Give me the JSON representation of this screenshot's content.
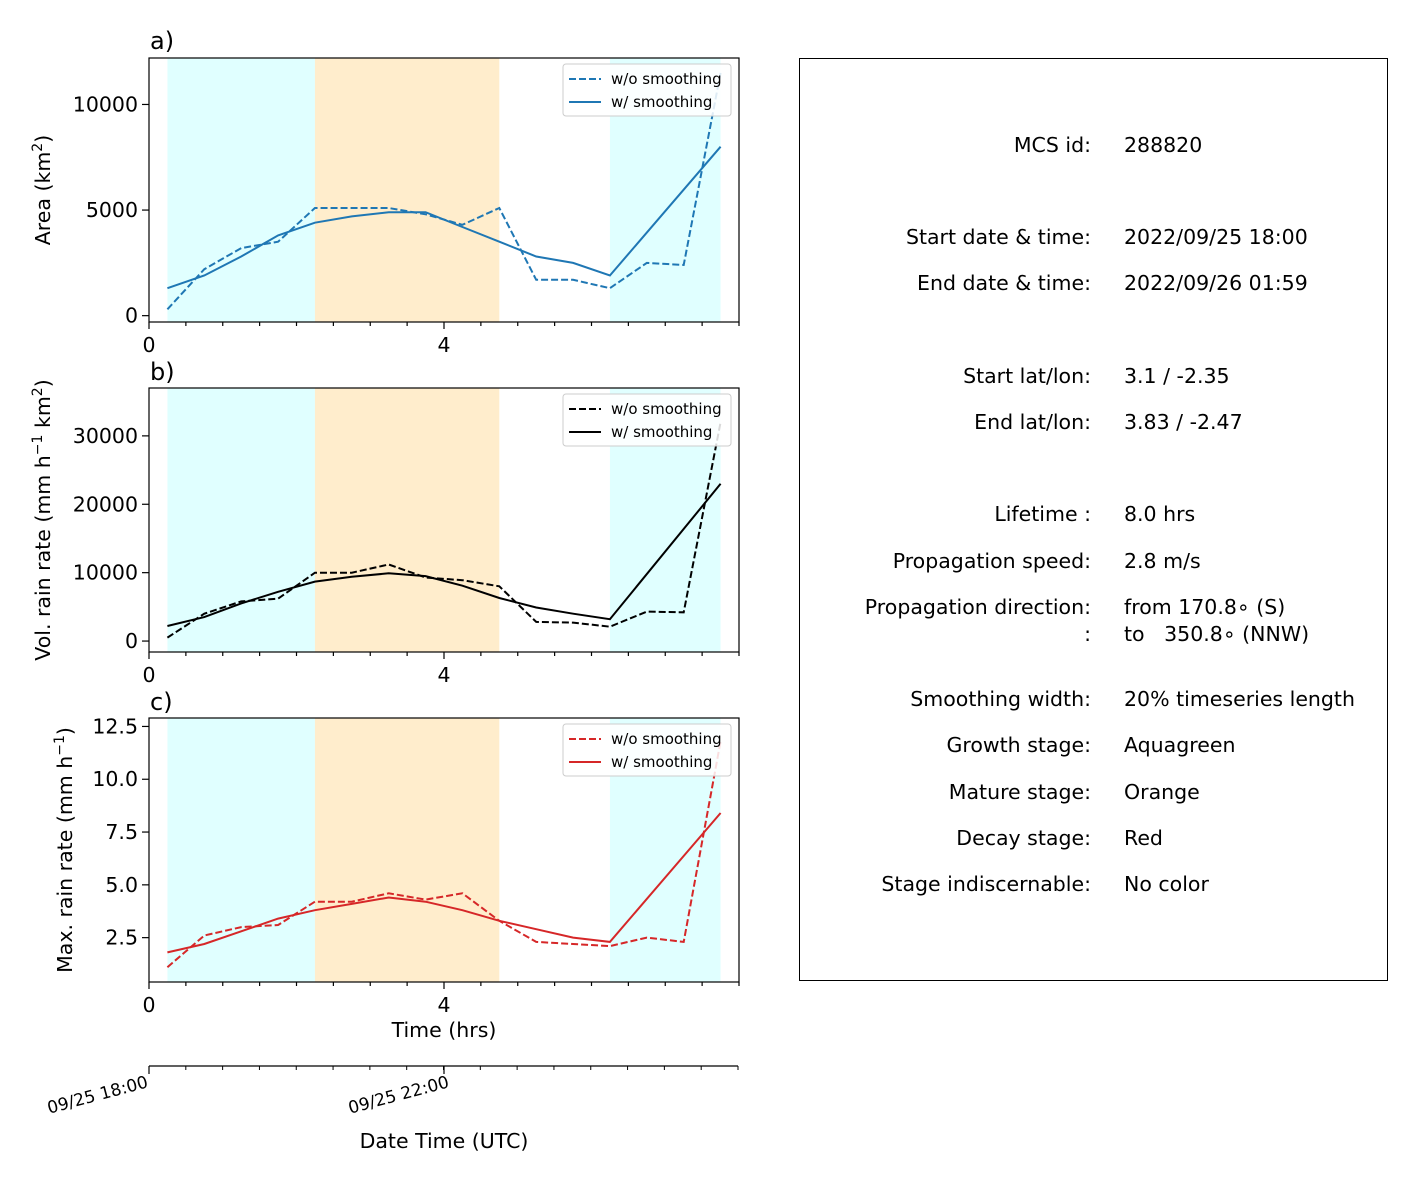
{
  "figure": {
    "panels": [
      {
        "panel_label": "a)",
        "ylabel_main": "Area  (km",
        "ylabel_sup": "2",
        "ylabel_end": ")"
      },
      {
        "panel_label": "b)",
        "ylabel_main": "Vol. rain rate (mm h",
        "ylabel_sup": "−1",
        "ylabel_end": " km",
        "ylabel_sup2": "2",
        "ylabel_end2": ")"
      },
      {
        "panel_label": "c)",
        "ylabel_main": "Max. rain rate  (mm h",
        "ylabel_sup": "−1",
        "ylabel_end": ")"
      }
    ],
    "time_xlabel": "Time (hrs)",
    "datetime_xlabel": "Date Time (UTC)",
    "datetime_ticks": [
      "09/25 18:00",
      "09/25 22:00"
    ]
  },
  "chart_data": [
    {
      "type": "line",
      "title": "",
      "xlabel": "",
      "ylabel": "Area  (km2)",
      "xlim": [
        0,
        8
      ],
      "ylim": [
        -300,
        12200
      ],
      "xticks": [
        0,
        4
      ],
      "yticks": [
        0,
        5000,
        10000
      ],
      "colors": {
        "series": "#1f77b4"
      },
      "stages": [
        {
          "from": 0.25,
          "to": 2.25,
          "color": "#e0ffff"
        },
        {
          "from": 2.25,
          "to": 4.75,
          "color": "#ffedcc"
        },
        {
          "from": 6.25,
          "to": 7.75,
          "color": "#e0ffff"
        }
      ],
      "legend_position": "top-right",
      "series": [
        {
          "name": "w/o smoothing",
          "style": "dashed",
          "x": [
            0.25,
            0.75,
            1.25,
            1.75,
            2.25,
            2.75,
            3.25,
            3.75,
            4.25,
            4.75,
            5.25,
            5.75,
            6.25,
            6.75,
            7.25,
            7.75
          ],
          "y": [
            300,
            2200,
            3200,
            3500,
            5100,
            5100,
            5100,
            4800,
            4300,
            5100,
            1700,
            1700,
            1300,
            2500,
            2400,
            11500
          ]
        },
        {
          "name": "w/ smoothing",
          "style": "solid",
          "x": [
            0.25,
            0.75,
            1.25,
            1.75,
            2.25,
            2.75,
            3.25,
            3.75,
            4.25,
            4.75,
            5.25,
            5.75,
            6.25,
            7.75
          ],
          "y": [
            1300,
            1900,
            2800,
            3800,
            4400,
            4700,
            4900,
            4900,
            4200,
            3500,
            2800,
            2500,
            1900,
            8000
          ]
        }
      ]
    },
    {
      "type": "line",
      "title": "",
      "xlabel": "",
      "ylabel": "Vol. rain rate (mm h−1 km2)",
      "xlim": [
        0,
        8
      ],
      "ylim": [
        -1600,
        37000
      ],
      "xticks": [
        0,
        4
      ],
      "yticks": [
        0,
        10000,
        20000,
        30000
      ],
      "colors": {
        "series": "#000000"
      },
      "stages": [
        {
          "from": 0.25,
          "to": 2.25,
          "color": "#e0ffff"
        },
        {
          "from": 2.25,
          "to": 4.75,
          "color": "#ffedcc"
        },
        {
          "from": 6.25,
          "to": 7.75,
          "color": "#e0ffff"
        }
      ],
      "legend_position": "top-right",
      "series": [
        {
          "name": "w/o smoothing",
          "style": "dashed",
          "x": [
            0.25,
            0.75,
            1.25,
            1.75,
            2.25,
            2.75,
            3.25,
            3.75,
            4.25,
            4.75,
            5.25,
            5.75,
            6.25,
            6.75,
            7.25,
            7.75
          ],
          "y": [
            500,
            4000,
            5800,
            6200,
            10000,
            10000,
            11200,
            9300,
            8900,
            8000,
            2800,
            2700,
            2100,
            4300,
            4200,
            32000
          ]
        },
        {
          "name": "w/ smoothing",
          "style": "solid",
          "x": [
            0.25,
            0.75,
            1.25,
            1.75,
            2.25,
            2.75,
            3.25,
            3.75,
            4.25,
            4.75,
            5.25,
            5.75,
            6.25,
            7.75
          ],
          "y": [
            2200,
            3500,
            5500,
            7200,
            8700,
            9400,
            9900,
            9500,
            8100,
            6300,
            4900,
            4000,
            3200,
            23000
          ]
        }
      ]
    },
    {
      "type": "line",
      "title": "",
      "xlabel": "Time (hrs)",
      "ylabel": "Max. rain rate  (mm h−1)",
      "xlim": [
        0,
        8
      ],
      "ylim": [
        0.4,
        12.9
      ],
      "xticks": [
        0,
        4
      ],
      "yticks": [
        2.5,
        5.0,
        7.5,
        10.0,
        12.5
      ],
      "colors": {
        "series": "#d62728"
      },
      "stages": [
        {
          "from": 0.25,
          "to": 2.25,
          "color": "#e0ffff"
        },
        {
          "from": 2.25,
          "to": 4.75,
          "color": "#ffedcc"
        },
        {
          "from": 6.25,
          "to": 7.75,
          "color": "#e0ffff"
        }
      ],
      "legend_position": "top-right",
      "series": [
        {
          "name": "w/o smoothing",
          "style": "dashed",
          "x": [
            0.25,
            0.75,
            1.25,
            1.75,
            2.25,
            2.75,
            3.25,
            3.75,
            4.25,
            4.75,
            5.25,
            5.75,
            6.25,
            6.75,
            7.25,
            7.75
          ],
          "y": [
            1.1,
            2.6,
            3.0,
            3.1,
            4.2,
            4.2,
            4.6,
            4.3,
            4.6,
            3.3,
            2.3,
            2.2,
            2.1,
            2.5,
            2.3,
            11.8
          ]
        },
        {
          "name": "w/ smoothing",
          "style": "solid",
          "x": [
            0.25,
            0.75,
            1.25,
            1.75,
            2.25,
            2.75,
            3.25,
            3.75,
            4.25,
            4.75,
            5.25,
            5.75,
            6.25,
            7.75
          ],
          "y": [
            1.8,
            2.2,
            2.8,
            3.4,
            3.8,
            4.1,
            4.4,
            4.2,
            3.8,
            3.3,
            2.9,
            2.5,
            2.3,
            8.4
          ]
        }
      ]
    }
  ],
  "info": {
    "rows": [
      {
        "label": "MCS id:",
        "value": "288820"
      },
      {
        "label": "Start date & time:",
        "value": "2022/09/25 18:00"
      },
      {
        "label": "End date & time:",
        "value": "2022/09/26 01:59"
      },
      {
        "label": "Start lat/lon:",
        "value": "3.1 / -2.35"
      },
      {
        "label": "End lat/lon:",
        "value": "3.83 / -2.47"
      },
      {
        "label": "Lifetime :",
        "value": "8.0 hrs"
      },
      {
        "label": "Propagation speed:",
        "value": "2.8 m/s"
      },
      {
        "label": "Propagation direction:",
        "value": "from 170.8∘ (S)"
      },
      {
        "label": ":",
        "value": "to   350.8∘ (NNW)"
      },
      {
        "label": "Smoothing width:",
        "value": "20% timeseries length"
      },
      {
        "label": "Growth stage:",
        "value": "Aquagreen"
      },
      {
        "label": "Mature stage:",
        "value": "Orange"
      },
      {
        "label": "Decay stage:",
        "value": "Red"
      },
      {
        "label": "Stage indiscernable:",
        "value": "No color"
      }
    ]
  }
}
